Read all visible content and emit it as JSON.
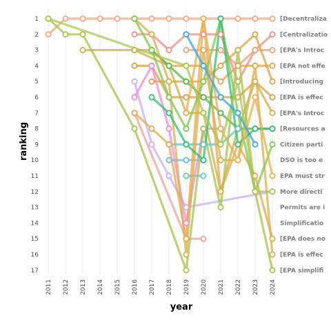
{
  "chart_data": {
    "type": "line",
    "xlabel": "year",
    "ylabel": "ranking",
    "x": [
      2011,
      2012,
      2013,
      2014,
      2015,
      2016,
      2017,
      2018,
      2019,
      2020,
      2021,
      2022,
      2023,
      2024
    ],
    "ylim": [
      1,
      17
    ],
    "y_reversed": true,
    "grid": "vertical",
    "legend": "right",
    "series": [
      {
        "name": "[Decentraliza",
        "color": "#f4a582",
        "points": [
          [
            2011,
            2
          ],
          [
            2012,
            1
          ],
          [
            2013,
            1
          ],
          [
            2014,
            1
          ],
          [
            2015,
            1
          ],
          [
            2016,
            1
          ],
          [
            2017,
            1
          ],
          [
            2018,
            1
          ],
          [
            2019,
            1
          ],
          [
            2020,
            1
          ],
          [
            2021,
            1
          ],
          [
            2022,
            1
          ],
          [
            2023,
            1
          ],
          [
            2024,
            1
          ]
        ]
      },
      {
        "name": "[Centralizatio",
        "color": "#f28e7f",
        "points": [
          [
            2016,
            2
          ],
          [
            2017,
            2
          ],
          [
            2018,
            3
          ],
          [
            2019,
            2
          ],
          [
            2020,
            2
          ],
          [
            2021,
            2
          ],
          [
            2022,
            5
          ],
          [
            2023,
            3
          ],
          [
            2024,
            2
          ]
        ]
      },
      {
        "name": "[EPA's Introc",
        "color": "#eba37a",
        "points": [
          [
            2019,
            3
          ],
          [
            2020,
            3
          ],
          [
            2021,
            3
          ],
          [
            2022,
            4
          ],
          [
            2023,
            3
          ],
          [
            2024,
            3
          ]
        ]
      },
      {
        "name": "[EPA not effe",
        "color": "#e6a44f",
        "points": [
          [
            2016,
            3
          ],
          [
            2017,
            3
          ],
          [
            2018,
            4
          ],
          [
            2019,
            4
          ],
          [
            2020,
            4
          ],
          [
            2021,
            5
          ],
          [
            2022,
            4
          ],
          [
            2023,
            4
          ],
          [
            2024,
            4
          ]
        ]
      },
      {
        "name": "[Introducing",
        "color": "#d9a441",
        "points": [
          [
            2017,
            5
          ],
          [
            2018,
            5
          ],
          [
            2019,
            5
          ],
          [
            2020,
            5
          ],
          [
            2021,
            4
          ],
          [
            2022,
            3
          ],
          [
            2023,
            2
          ],
          [
            2024,
            5
          ]
        ]
      },
      {
        "name": "[EPA is effec",
        "color": "#d6a042",
        "points": [
          [
            2016,
            4
          ],
          [
            2017,
            4
          ],
          [
            2018,
            6
          ],
          [
            2019,
            6
          ],
          [
            2020,
            6
          ],
          [
            2021,
            6
          ],
          [
            2022,
            6
          ],
          [
            2023,
            5
          ],
          [
            2024,
            6
          ]
        ]
      },
      {
        "name": "[EPA's Introc",
        "color": "#cfae4a",
        "points": [
          [
            2013,
            3
          ],
          [
            2016,
            3
          ],
          [
            2018,
            4
          ],
          [
            2019,
            7
          ],
          [
            2020,
            7
          ],
          [
            2021,
            12
          ],
          [
            2022,
            8
          ],
          [
            2023,
            5
          ],
          [
            2024,
            7
          ]
        ]
      },
      {
        "name": "[Resources a",
        "color": "#4fb84f",
        "points": [
          [
            2017,
            3
          ],
          [
            2018,
            4
          ],
          [
            2019,
            5
          ],
          [
            2020,
            6
          ],
          [
            2021,
            7
          ],
          [
            2022,
            8
          ],
          [
            2023,
            8
          ],
          [
            2024,
            8
          ]
        ]
      },
      {
        "name": "Citizen parti",
        "color": "#5cc8c8",
        "points": [
          [
            2018,
            9
          ],
          [
            2019,
            9
          ],
          [
            2020,
            9
          ],
          [
            2021,
            9
          ],
          [
            2022,
            8
          ]
        ]
      },
      {
        "name": "DSO is too e",
        "color": "#5cc0e0",
        "points": [
          [
            2018,
            10
          ],
          [
            2019,
            10
          ],
          [
            2020,
            10
          ]
        ]
      },
      {
        "name": "EPA must str",
        "color": "#5cc8d8",
        "points": [
          [
            2019,
            11
          ],
          [
            2020,
            11
          ]
        ]
      },
      {
        "name": "More directi",
        "color": "#c6b0f5",
        "points": [
          [
            2016,
            5
          ],
          [
            2017,
            9
          ],
          [
            2018,
            11
          ],
          [
            2019,
            13
          ],
          [
            2024,
            12
          ]
        ]
      },
      {
        "name": "Permits are i",
        "color": "#f08ad8",
        "points": [
          [
            2016,
            6
          ],
          [
            2017,
            4
          ],
          [
            2018,
            8
          ],
          [
            2019,
            14
          ],
          [
            2020,
            8
          ],
          [
            2021,
            8
          ]
        ]
      },
      {
        "name": "Simplificatio",
        "color": "#f3a0a0",
        "points": [
          [
            2016,
            7
          ],
          [
            2019,
            15
          ],
          [
            2020,
            15
          ]
        ]
      },
      {
        "name": "[EPA does no",
        "color": "#e8a84a",
        "points": [
          [
            2016,
            7
          ],
          [
            2017,
            8
          ],
          [
            2018,
            9
          ],
          [
            2019,
            15
          ],
          [
            2020,
            1
          ],
          [
            2021,
            12
          ],
          [
            2022,
            9
          ],
          [
            2023,
            11
          ],
          [
            2024,
            15
          ]
        ]
      },
      {
        "name": "[EPA is effec",
        "color": "#d8b04a",
        "points": [
          [
            2016,
            1
          ],
          [
            2017,
            2
          ],
          [
            2018,
            5
          ],
          [
            2019,
            16
          ],
          [
            2020,
            3
          ],
          [
            2021,
            10
          ],
          [
            2022,
            10
          ],
          [
            2023,
            4
          ],
          [
            2024,
            16
          ]
        ]
      },
      {
        "name": "[EPA simplifi",
        "color": "#a8c24a",
        "points": [
          [
            2011,
            1
          ],
          [
            2012,
            2
          ],
          [
            2013,
            2
          ],
          [
            2016,
            8
          ],
          [
            2019,
            17
          ],
          [
            2020,
            8
          ],
          [
            2021,
            13
          ],
          [
            2022,
            3
          ],
          [
            2023,
            12
          ],
          [
            2024,
            17
          ]
        ]
      },
      {
        "name": "",
        "color": "#7ec850",
        "points": [
          [
            2016,
            1
          ],
          [
            2017,
            3
          ],
          [
            2018,
            6
          ],
          [
            2019,
            8
          ],
          [
            2020,
            5
          ],
          [
            2021,
            1
          ],
          [
            2022,
            7
          ],
          [
            2023,
            12
          ],
          [
            2024,
            9
          ]
        ]
      },
      {
        "name": "",
        "color": "#2fc070",
        "points": [
          [
            2017,
            6
          ],
          [
            2018,
            7
          ],
          [
            2019,
            9
          ],
          [
            2020,
            10
          ],
          [
            2021,
            1
          ],
          [
            2022,
            9
          ],
          [
            2023,
            8
          ],
          [
            2024,
            8
          ]
        ]
      },
      {
        "name": "",
        "color": "#a8c850",
        "points": [
          [
            2011,
            1
          ],
          [
            2019,
            4
          ],
          [
            2020,
            7
          ],
          [
            2021,
            9
          ],
          [
            2022,
            5
          ],
          [
            2023,
            12
          ],
          [
            2024,
            12
          ]
        ]
      },
      {
        "name": "",
        "color": "#e8b050",
        "points": [
          [
            2019,
            7
          ],
          [
            2020,
            1
          ],
          [
            2021,
            8
          ],
          [
            2022,
            10
          ],
          [
            2023,
            6
          ],
          [
            2024,
            11
          ]
        ]
      },
      {
        "name": "",
        "color": "#3aa8e0",
        "points": [
          [
            2019,
            2
          ],
          [
            2020,
            4
          ],
          [
            2021,
            6
          ],
          [
            2022,
            7
          ],
          [
            2023,
            9
          ]
        ]
      }
    ]
  }
}
